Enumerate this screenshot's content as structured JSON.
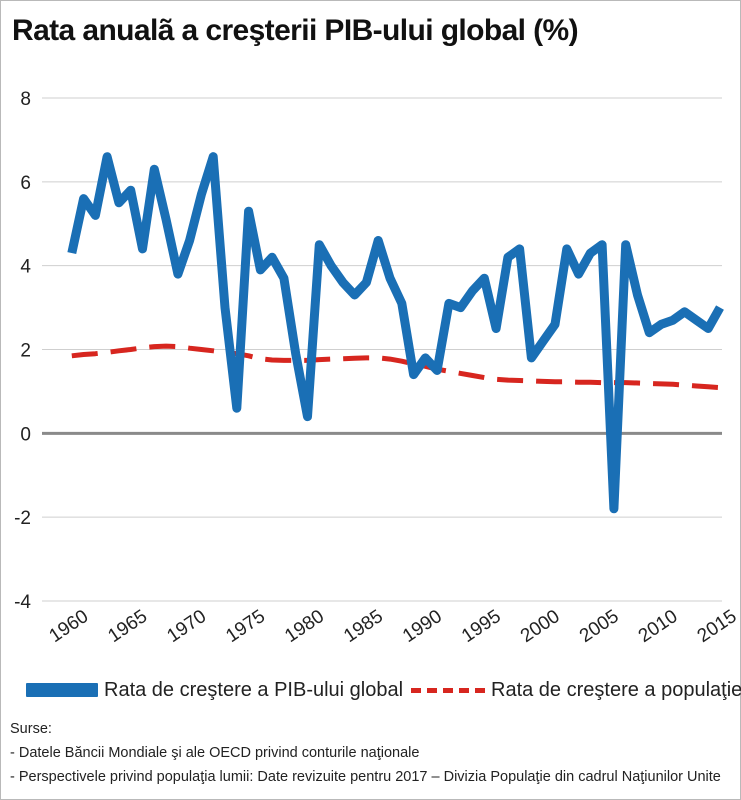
{
  "title": "Rata anualã a creşterii PIB-ului global (%)",
  "chart_data": {
    "type": "line",
    "title": "Rata anualã a creşterii PIB-ului global (%)",
    "xlabel": "",
    "ylabel": "",
    "xlim": [
      1960,
      2016
    ],
    "ylim": [
      -4,
      8
    ],
    "y_ticks": [
      8,
      6,
      4,
      2,
      0,
      -2,
      -4
    ],
    "x_ticks": [
      "1960",
      "1965",
      "1970",
      "1975",
      "1980",
      "1985",
      "1990",
      "1995",
      "2000",
      "2005",
      "2010",
      "2015"
    ],
    "grid": true,
    "legend_position": "bottom",
    "x": [
      1961,
      1962,
      1963,
      1964,
      1965,
      1966,
      1967,
      1968,
      1969,
      1970,
      1971,
      1972,
      1973,
      1974,
      1975,
      1976,
      1977,
      1978,
      1979,
      1980,
      1981,
      1982,
      1983,
      1984,
      1985,
      1986,
      1987,
      1988,
      1989,
      1990,
      1991,
      1992,
      1993,
      1994,
      1995,
      1996,
      1997,
      1998,
      1999,
      2000,
      2001,
      2002,
      2003,
      2004,
      2005,
      2006,
      2007,
      2008,
      2009,
      2010,
      2011,
      2012,
      2013,
      2014,
      2015,
      2016
    ],
    "series": [
      {
        "name": "Rata de creştere a PIB-ului global",
        "color": "#1a6fb5",
        "style": "solid",
        "values": [
          4.3,
          5.6,
          5.2,
          6.6,
          5.5,
          5.8,
          4.4,
          6.3,
          5.1,
          3.8,
          4.6,
          5.7,
          6.6,
          3.0,
          0.6,
          5.3,
          3.9,
          4.2,
          3.7,
          1.9,
          0.4,
          4.5,
          4.0,
          3.6,
          3.3,
          3.6,
          4.6,
          3.7,
          3.1,
          1.4,
          1.8,
          1.5,
          3.1,
          3.0,
          3.4,
          3.7,
          2.5,
          4.2,
          4.4,
          1.8,
          2.2,
          2.6,
          4.4,
          3.8,
          4.3,
          4.5,
          -1.8,
          4.5,
          3.3,
          2.4,
          2.6,
          2.7,
          2.9,
          2.7,
          2.5,
          3.0
        ]
      },
      {
        "name": "Rata de creştere a populaţiei",
        "color": "#d7261f",
        "style": "dashed",
        "values": [
          1.85,
          1.88,
          1.9,
          1.93,
          1.97,
          2.0,
          2.04,
          2.07,
          2.08,
          2.07,
          2.03,
          2.0,
          1.97,
          1.93,
          1.9,
          1.85,
          1.78,
          1.75,
          1.74,
          1.74,
          1.74,
          1.76,
          1.77,
          1.78,
          1.79,
          1.8,
          1.8,
          1.77,
          1.72,
          1.66,
          1.6,
          1.53,
          1.48,
          1.43,
          1.38,
          1.33,
          1.29,
          1.27,
          1.26,
          1.25,
          1.24,
          1.23,
          1.23,
          1.22,
          1.22,
          1.21,
          1.21,
          1.21,
          1.2,
          1.19,
          1.18,
          1.17,
          1.15,
          1.13,
          1.11,
          1.09
        ]
      }
    ]
  },
  "legend": {
    "gdp_label": "Rata de creştere a PIB-ului global",
    "pop_label": "Rata de creştere a populaţiei"
  },
  "sources": {
    "heading": "Surse:",
    "line1": "- Datele Băncii Mondiale şi ale OECD privind conturile naţionale",
    "line2": "- Perspectivele privind populaţia lumii: Date revizuite pentru 2017 – Divizia Populaţie din cadrul Naţiunilor Unite"
  }
}
